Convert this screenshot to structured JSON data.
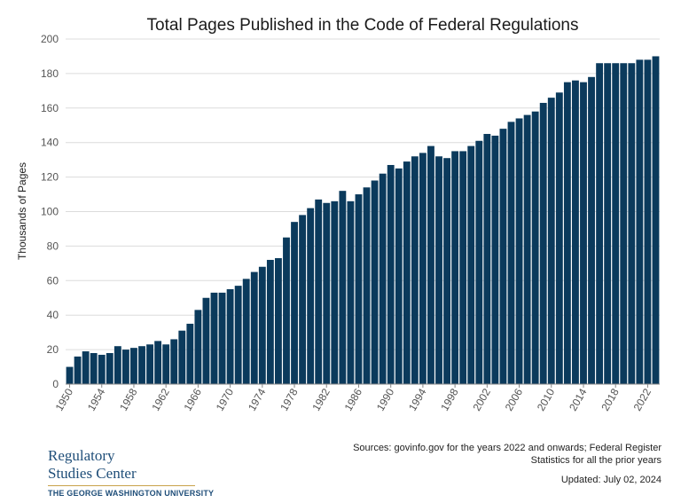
{
  "chart_data": {
    "type": "bar",
    "title": "Total Pages Published in the Code of Federal Regulations",
    "xlabel": "",
    "ylabel": "Thousands of Pages",
    "ylim": [
      0,
      200
    ],
    "yticks": [
      0,
      20,
      40,
      60,
      80,
      100,
      120,
      140,
      160,
      180,
      200
    ],
    "x_tick_labels": [
      "1950",
      "1954",
      "1958",
      "1962",
      "1966",
      "1970",
      "1974",
      "1978",
      "1982",
      "1986",
      "1990",
      "1994",
      "1998",
      "2002",
      "2006",
      "2010",
      "2014",
      "2018",
      "2022"
    ],
    "grid": "horizontal",
    "bar_color": "#0b3a5c",
    "categories": [
      1950,
      1951,
      1952,
      1953,
      1954,
      1955,
      1956,
      1957,
      1958,
      1959,
      1960,
      1961,
      1962,
      1963,
      1964,
      1965,
      1966,
      1967,
      1968,
      1969,
      1970,
      1971,
      1972,
      1973,
      1974,
      1975,
      1976,
      1977,
      1978,
      1979,
      1980,
      1981,
      1982,
      1983,
      1984,
      1985,
      1986,
      1987,
      1988,
      1989,
      1990,
      1991,
      1992,
      1993,
      1994,
      1995,
      1996,
      1997,
      1998,
      1999,
      2000,
      2001,
      2002,
      2003,
      2004,
      2005,
      2006,
      2007,
      2008,
      2009,
      2010,
      2011,
      2012,
      2013,
      2014,
      2015,
      2016,
      2017,
      2018,
      2019,
      2020,
      2021,
      2022,
      2023
    ],
    "values": [
      10,
      16,
      19,
      18,
      17,
      18,
      22,
      20,
      21,
      22,
      23,
      25,
      23,
      26,
      31,
      35,
      43,
      50,
      53,
      53,
      55,
      57,
      61,
      65,
      68,
      72,
      73,
      85,
      94,
      98,
      102,
      107,
      105,
      106,
      112,
      106,
      110,
      114,
      118,
      122,
      127,
      125,
      129,
      132,
      134,
      138,
      132,
      131,
      135,
      135,
      138,
      141,
      145,
      144,
      148,
      152,
      154,
      156,
      158,
      163,
      166,
      169,
      175,
      176,
      175,
      178,
      186,
      186,
      186,
      186,
      186,
      188,
      188,
      190
    ]
  },
  "footer": {
    "logo_line1": "Regulatory",
    "logo_line2": "Studies Center",
    "logo_line3": "THE GEORGE WASHINGTON UNIVERSITY",
    "sources": "Sources: govinfo.gov for the years 2022 and onwards; Federal Register Statistics for all the prior years",
    "updated": "Updated: July 02, 2024"
  }
}
